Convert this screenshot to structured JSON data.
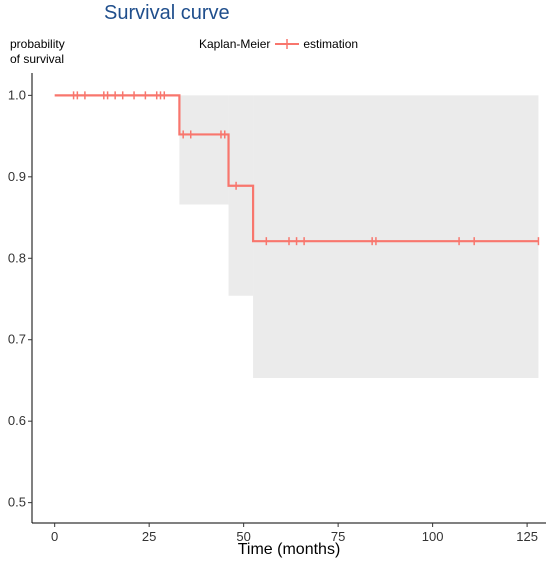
{
  "chart_data": {
    "type": "line",
    "title": "Survival curve",
    "ylabel": "probability\nof survival",
    "xlabel": "Time (months)",
    "legend": {
      "title": "Kaplan-Meier",
      "entries": [
        {
          "name": "estimation",
          "color": "#f8766d"
        }
      ],
      "placement": "top"
    },
    "xlim": [
      -6,
      130
    ],
    "ylim": [
      0.475,
      1.025
    ],
    "x_ticks": [
      0,
      25,
      50,
      75,
      100,
      125
    ],
    "y_ticks": [
      0.5,
      0.6,
      0.7,
      0.8,
      0.9,
      1.0
    ],
    "x_tick_labels": [
      "0",
      "25",
      "50",
      "75",
      "100",
      "125"
    ],
    "y_tick_labels": [
      "0.5",
      "0.6",
      "0.7",
      "0.8",
      "0.9",
      "1.0"
    ],
    "grid": false,
    "series": [
      {
        "name": "estimation",
        "color": "#f8766d",
        "steps": [
          {
            "x": 0,
            "y": 1.0
          },
          {
            "x": 33,
            "y": 0.952
          },
          {
            "x": 46,
            "y": 0.889
          },
          {
            "x": 52.5,
            "y": 0.821
          }
        ],
        "x_end": 128,
        "censored": [
          {
            "x": 5,
            "y": 1.0
          },
          {
            "x": 6,
            "y": 1.0
          },
          {
            "x": 8,
            "y": 1.0
          },
          {
            "x": 13,
            "y": 1.0
          },
          {
            "x": 14,
            "y": 1.0
          },
          {
            "x": 16,
            "y": 1.0
          },
          {
            "x": 18,
            "y": 1.0
          },
          {
            "x": 21,
            "y": 1.0
          },
          {
            "x": 24,
            "y": 1.0
          },
          {
            "x": 27,
            "y": 1.0
          },
          {
            "x": 28,
            "y": 1.0
          },
          {
            "x": 29,
            "y": 1.0
          },
          {
            "x": 34,
            "y": 0.952
          },
          {
            "x": 36,
            "y": 0.952
          },
          {
            "x": 44,
            "y": 0.952
          },
          {
            "x": 45,
            "y": 0.952
          },
          {
            "x": 48,
            "y": 0.889
          },
          {
            "x": 56,
            "y": 0.821
          },
          {
            "x": 62,
            "y": 0.821
          },
          {
            "x": 64,
            "y": 0.821
          },
          {
            "x": 66,
            "y": 0.821
          },
          {
            "x": 84,
            "y": 0.821
          },
          {
            "x": 85,
            "y": 0.821
          },
          {
            "x": 107,
            "y": 0.821
          },
          {
            "x": 111,
            "y": 0.821
          },
          {
            "x": 128,
            "y": 0.821
          }
        ],
        "ci_band": {
          "color": "#ebebeb",
          "segments": [
            {
              "x0": 0,
              "x1": 33,
              "lower": 1.0,
              "upper": 1.0
            },
            {
              "x0": 33,
              "x1": 46,
              "lower": 0.866,
              "upper": 1.0
            },
            {
              "x0": 46,
              "x1": 52.5,
              "lower": 0.754,
              "upper": 1.0
            },
            {
              "x0": 52.5,
              "x1": 128,
              "lower": 0.653,
              "upper": 1.0
            }
          ]
        }
      }
    ]
  }
}
